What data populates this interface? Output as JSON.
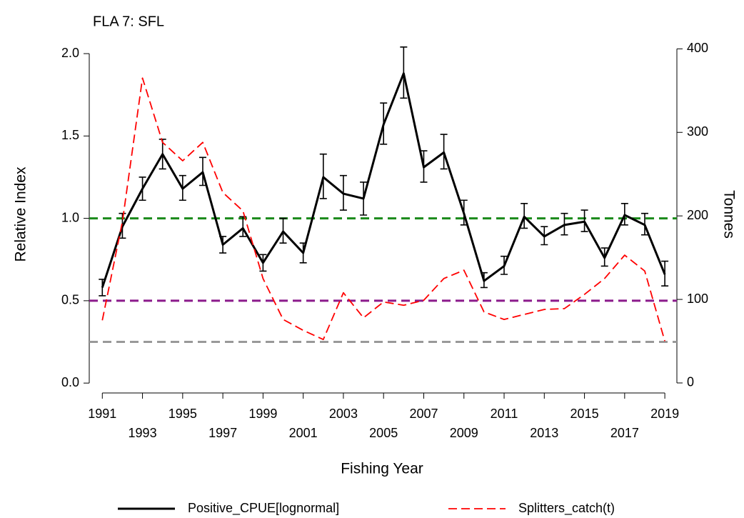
{
  "chart_data": {
    "type": "line",
    "title": "FLA 7: SFL",
    "x_label": "Fishing Year",
    "y_label": "Relative Index",
    "y2_label": "Tonnes",
    "x": [
      1991,
      1992,
      1993,
      1994,
      1995,
      1996,
      1997,
      1998,
      1999,
      2000,
      2001,
      2002,
      2003,
      2004,
      2005,
      2006,
      2007,
      2008,
      2009,
      2010,
      2011,
      2012,
      2013,
      2014,
      2015,
      2016,
      2017,
      2018,
      2019
    ],
    "xlim": [
      1990.35,
      2019.6
    ],
    "xticks": [
      1991,
      1993,
      1995,
      1997,
      1999,
      2001,
      2003,
      2005,
      2007,
      2009,
      2011,
      2013,
      2015,
      2017,
      2019
    ],
    "ylim": [
      -0.06,
      2.1
    ],
    "yticks": [
      {
        "value": 0,
        "label": "0.0"
      },
      0.5,
      {
        "value": 1,
        "label": "1.0"
      },
      1.5,
      {
        "value": 2,
        "label": "2.0"
      }
    ],
    "y2lim": [
      -12,
      414
    ],
    "y2ticks": [
      0,
      100,
      200,
      300,
      400
    ],
    "hlines": [
      {
        "value": 1.0,
        "color": "#1a8a1a"
      },
      {
        "value": 0.5,
        "color": "#8b1a8b"
      },
      {
        "value": 0.25,
        "color": "#999999"
      }
    ],
    "series": [
      {
        "name": "Positive_CPUE[lognormal]",
        "color": "#000000",
        "dash": false,
        "axis": "y",
        "values": [
          0.58,
          0.95,
          1.18,
          1.39,
          1.18,
          1.28,
          0.84,
          0.94,
          0.73,
          0.92,
          0.79,
          1.25,
          1.15,
          1.12,
          1.57,
          1.88,
          1.31,
          1.4,
          1.03,
          0.62,
          0.71,
          1.01,
          0.89,
          0.96,
          0.98,
          0.76,
          1.02,
          0.96,
          0.66
        ],
        "lower": [
          0.53,
          0.88,
          1.11,
          1.3,
          1.11,
          1.2,
          0.79,
          0.89,
          0.68,
          0.85,
          0.73,
          1.12,
          1.05,
          1.02,
          1.45,
          1.73,
          1.22,
          1.3,
          0.96,
          0.58,
          0.66,
          0.94,
          0.84,
          0.9,
          0.92,
          0.71,
          0.96,
          0.9,
          0.59
        ],
        "upper": [
          0.63,
          1.03,
          1.25,
          1.48,
          1.26,
          1.37,
          0.89,
          1.01,
          0.78,
          1.0,
          0.85,
          1.39,
          1.26,
          1.22,
          1.7,
          2.04,
          1.41,
          1.51,
          1.11,
          0.67,
          0.77,
          1.09,
          0.95,
          1.03,
          1.05,
          0.82,
          1.09,
          1.03,
          0.74
        ]
      },
      {
        "name": "Splitters_catch(t)",
        "color": "#ff0000",
        "dash": true,
        "axis": "y2",
        "values": [
          75,
          193,
          365,
          288,
          266,
          288,
          228,
          206,
          125,
          76,
          63,
          52,
          108,
          78,
          97,
          93,
          99,
          125,
          135,
          85,
          76,
          82,
          88,
          89,
          106,
          125,
          153,
          134,
          50
        ]
      }
    ]
  }
}
